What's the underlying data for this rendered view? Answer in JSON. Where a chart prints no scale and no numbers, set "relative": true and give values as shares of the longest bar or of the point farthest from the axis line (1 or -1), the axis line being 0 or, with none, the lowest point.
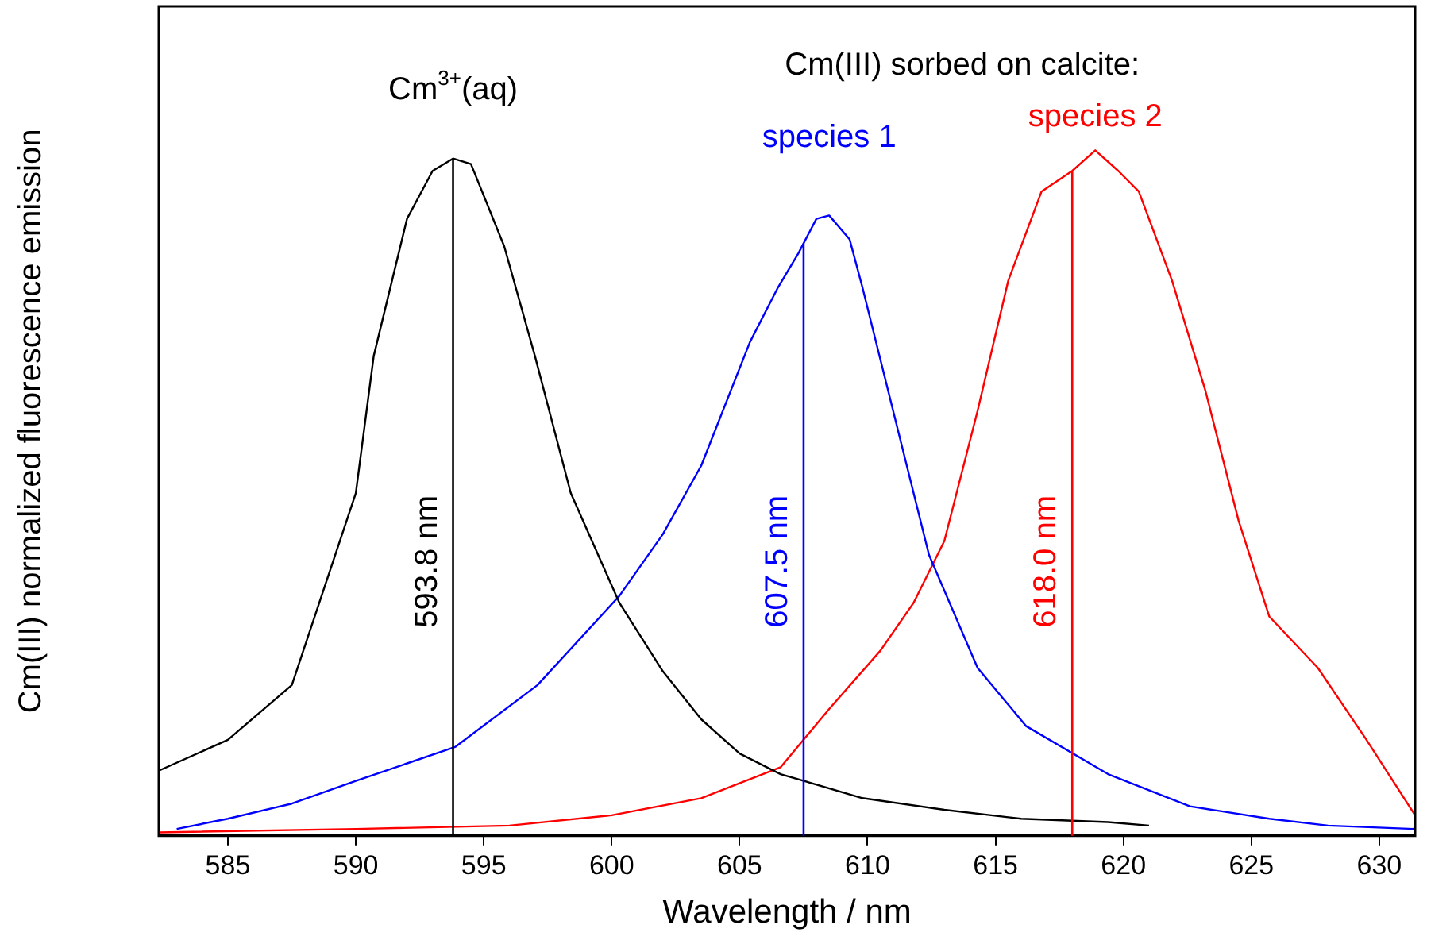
{
  "chart_data": {
    "type": "line",
    "relative": true,
    "xlabel": "Wavelength / nm",
    "ylabel": "Cm(III) normalized fluorescence emission",
    "xlim": [
      582.3,
      631.4
    ],
    "xticks": [
      585,
      590,
      595,
      600,
      605,
      610,
      615,
      620,
      625,
      630
    ],
    "tick_labels": "x",
    "grid": false,
    "legend": false,
    "marker": "none",
    "line_style": "solid",
    "annotations": [
      "Cm(III) sorbed on calcite:"
    ],
    "ref_lines": [
      {
        "axis": "x",
        "value": 593.8,
        "label": "593.8 nm",
        "color": "#000000"
      },
      {
        "axis": "x",
        "value": 607.5,
        "label": "607.5 nm",
        "color": "#0000ff"
      },
      {
        "axis": "x",
        "value": 618.0,
        "label": "618.0 nm",
        "color": "#ff0000"
      }
    ],
    "series": [
      {
        "name": "Cm$^{3+}$(aq)",
        "color": "#000000",
        "x": [
          582.3,
          585,
          587.5,
          590,
          590.7,
          592,
          593,
          593.8,
          594.5,
          595.8,
          597,
          598.4,
          600.3,
          602,
          603.5,
          605,
          606.6,
          609.8,
          613,
          616,
          619.4,
          621
        ],
        "values": [
          0.095,
          0.14,
          0.22,
          0.5,
          0.7,
          0.9,
          0.97,
          0.988,
          0.98,
          0.86,
          0.7,
          0.5,
          0.34,
          0.24,
          0.17,
          0.12,
          0.09,
          0.055,
          0.038,
          0.025,
          0.02,
          0.015
        ]
      },
      {
        "name": "species 1",
        "color": "#0000ff",
        "x": [
          583,
          585,
          587.5,
          590,
          593.9,
          597.1,
          600.3,
          602,
          603.5,
          605.4,
          606.5,
          607.3,
          608,
          608.5,
          609.3,
          609.8,
          611,
          612.4,
          614.3,
          616.2,
          619.4,
          622.6,
          625.7,
          628,
          631.4
        ],
        "values": [
          0.01,
          0.025,
          0.047,
          0.08,
          0.13,
          0.22,
          0.35,
          0.44,
          0.54,
          0.72,
          0.8,
          0.85,
          0.9,
          0.905,
          0.87,
          0.8,
          0.62,
          0.41,
          0.245,
          0.16,
          0.09,
          0.043,
          0.025,
          0.015,
          0.01
        ]
      },
      {
        "name": "species 2",
        "color": "#ff0000",
        "x": [
          582.3,
          590,
          596,
          600,
          603.5,
          606.6,
          608.5,
          610.5,
          611.8,
          613,
          614.3,
          615.5,
          616.8,
          618,
          618.9,
          619.8,
          620.6,
          621.9,
          623.2,
          624.5,
          625.7,
          627.6,
          629.5,
          631.4
        ],
        "values": [
          0.005,
          0.01,
          0.015,
          0.03,
          0.055,
          0.1,
          0.185,
          0.27,
          0.34,
          0.43,
          0.62,
          0.81,
          0.94,
          0.97,
          1,
          0.97,
          0.94,
          0.81,
          0.65,
          0.46,
          0.32,
          0.245,
          0.14,
          0.03
        ]
      }
    ]
  }
}
